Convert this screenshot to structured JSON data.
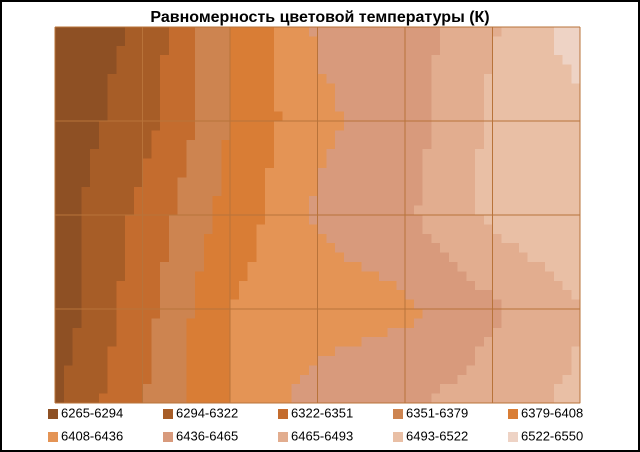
{
  "chart_data": {
    "type": "contour",
    "title": "Равномерность  цветовой температуры (К)",
    "values": [
      [
        6270,
        6300,
        6380,
        6440,
        6450,
        6490,
        6540
      ],
      [
        6275,
        6310,
        6380,
        6430,
        6450,
        6500,
        6510
      ],
      [
        6280,
        6330,
        6390,
        6440,
        6460,
        6500,
        6520
      ],
      [
        6275,
        6340,
        6410,
        6420,
        6430,
        6460,
        6490
      ],
      [
        6290,
        6350,
        6410,
        6450,
        6460,
        6480,
        6500
      ]
    ],
    "levels": [
      6265,
      6294,
      6322,
      6351,
      6379,
      6408,
      6436,
      6465,
      6493,
      6522,
      6550
    ],
    "series": [
      {
        "name": "6265-6294",
        "color": "#8e5024"
      },
      {
        "name": "6294-6322",
        "color": "#a75d27"
      },
      {
        "name": "6322-6351",
        "color": "#c46c2e"
      },
      {
        "name": "6351-6379",
        "color": "#cd8450"
      },
      {
        "name": "6379-6408",
        "color": "#d97d35"
      },
      {
        "name": "6408-6436",
        "color": "#e49455"
      },
      {
        "name": "6436-6465",
        "color": "#d89a7c"
      },
      {
        "name": "6465-6493",
        "color": "#e2ad8f"
      },
      {
        "name": "6493-6522",
        "color": "#e9bfa5"
      },
      {
        "name": "6522-6550",
        "color": "#eed3c5"
      }
    ]
  }
}
